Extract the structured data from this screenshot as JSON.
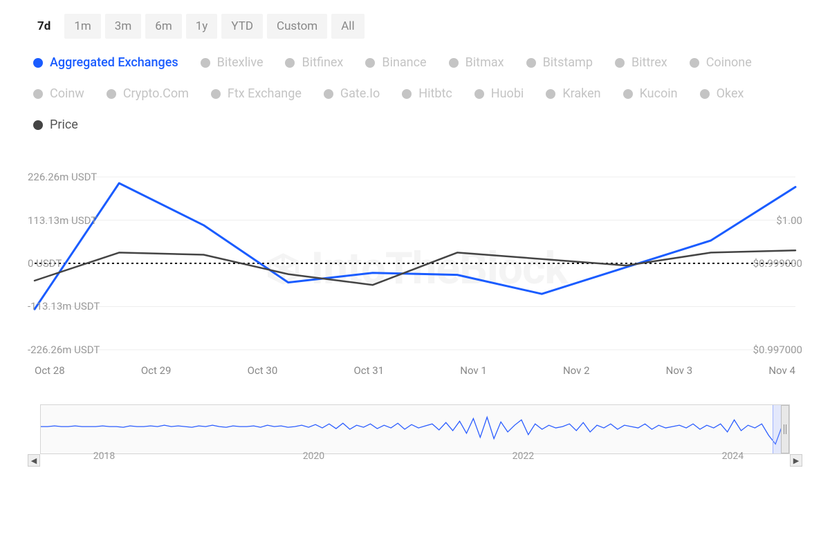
{
  "timeranges": {
    "items": [
      "7d",
      "1m",
      "3m",
      "6m",
      "1y",
      "YTD",
      "Custom",
      "All"
    ],
    "active_index": 0
  },
  "legend": {
    "items": [
      {
        "label": "Aggregated Exchanges",
        "state": "active-primary",
        "color": "#1a5cff"
      },
      {
        "label": "Bitexlive",
        "state": "inactive",
        "color": "#c4c4c4"
      },
      {
        "label": "Bitfinex",
        "state": "inactive",
        "color": "#c4c4c4"
      },
      {
        "label": "Binance",
        "state": "inactive",
        "color": "#c4c4c4"
      },
      {
        "label": "Bitmax",
        "state": "inactive",
        "color": "#c4c4c4"
      },
      {
        "label": "Bitstamp",
        "state": "inactive",
        "color": "#c4c4c4"
      },
      {
        "label": "Bittrex",
        "state": "inactive",
        "color": "#c4c4c4"
      },
      {
        "label": "Coinone",
        "state": "inactive",
        "color": "#c4c4c4"
      },
      {
        "label": "Coinw",
        "state": "inactive",
        "color": "#c4c4c4"
      },
      {
        "label": "Crypto.Com",
        "state": "inactive",
        "color": "#c4c4c4"
      },
      {
        "label": "Ftx Exchange",
        "state": "inactive",
        "color": "#c4c4c4"
      },
      {
        "label": "Gate.Io",
        "state": "inactive",
        "color": "#c4c4c4"
      },
      {
        "label": "Hitbtc",
        "state": "inactive",
        "color": "#c4c4c4"
      },
      {
        "label": "Huobi",
        "state": "inactive",
        "color": "#c4c4c4"
      },
      {
        "label": "Kraken",
        "state": "inactive",
        "color": "#c4c4c4"
      },
      {
        "label": "Kucoin",
        "state": "inactive",
        "color": "#c4c4c4"
      },
      {
        "label": "Okex",
        "state": "inactive",
        "color": "#c4c4c4"
      },
      {
        "label": "Price",
        "state": "active",
        "color": "#444444"
      }
    ]
  },
  "chart": {
    "type": "line",
    "x_categories": [
      "Oct 28",
      "Oct 29",
      "Oct 30",
      "Oct 31",
      "Nov 1",
      "Nov 2",
      "Nov 3",
      "Nov 4"
    ],
    "left_axis": {
      "ticks": [
        {
          "value": 226260000,
          "label": "226.26m USDT"
        },
        {
          "value": 113130000,
          "label": "113.13m USDT"
        },
        {
          "value": 0,
          "label": "0 USDT"
        },
        {
          "value": -113130000,
          "label": "-113.13m USDT"
        },
        {
          "value": -226260000,
          "label": "-226.26m USDT"
        }
      ],
      "ylim": [
        -226260000,
        226260000
      ]
    },
    "right_axis": {
      "ticks": [
        {
          "value": 1.0,
          "label": "$1.00"
        },
        {
          "value": 0.999,
          "label": "$0.999000"
        },
        {
          "value": 0.997,
          "label": "$0.997000"
        }
      ],
      "ylim": [
        0.997,
        1.001
      ]
    },
    "series": [
      {
        "name": "Aggregated Exchanges",
        "color": "#1a5cff",
        "line_width": 3,
        "axis": "left",
        "data": [
          -120000000,
          210000000,
          100000000,
          -50000000,
          -25000000,
          -30000000,
          -80000000,
          -10000000,
          60000000,
          200000000
        ]
      },
      {
        "name": "Price",
        "color": "#444444",
        "line_width": 2.5,
        "axis": "right",
        "data": [
          0.9986,
          0.99925,
          0.9992,
          0.99875,
          0.9985,
          0.99925,
          0.9991,
          0.99895,
          0.99925,
          0.9993
        ]
      }
    ],
    "zero_line": {
      "style": "dotted",
      "color": "#000000",
      "width": 2
    },
    "background_color": "#ffffff",
    "watermark": "IntoTheBlock"
  },
  "navigator": {
    "years": [
      "2018",
      "2020",
      "2022",
      "2024"
    ],
    "year_positions_pct": [
      7,
      35,
      63,
      91
    ],
    "selection": {
      "left_pct": 97.8,
      "width_pct": 1.4
    },
    "line_color": "#2a5cff",
    "sparkline": [
      32,
      32,
      31,
      32,
      32,
      31,
      32,
      32,
      32,
      31,
      32,
      32,
      33,
      31,
      32,
      32,
      31,
      32,
      30,
      32,
      31,
      32,
      33,
      31,
      32,
      30,
      32,
      33,
      31,
      32,
      32,
      31,
      33,
      30,
      32,
      31,
      33,
      32,
      30,
      33,
      29,
      34,
      28,
      35,
      27,
      36,
      30,
      33,
      28,
      35,
      30,
      34,
      27,
      36,
      29,
      34,
      31,
      28,
      37,
      26,
      38,
      24,
      42,
      20,
      48,
      18,
      50,
      25,
      40,
      30,
      22,
      44,
      28,
      36,
      30,
      34,
      32,
      28,
      38,
      26,
      40,
      30,
      34,
      28,
      36,
      30,
      32,
      34,
      28,
      36,
      30,
      34,
      32,
      30,
      34,
      28,
      36,
      30,
      34,
      28,
      40,
      22,
      38,
      30,
      34,
      28,
      45,
      58,
      30,
      34
    ],
    "sparkline_height": 72
  }
}
